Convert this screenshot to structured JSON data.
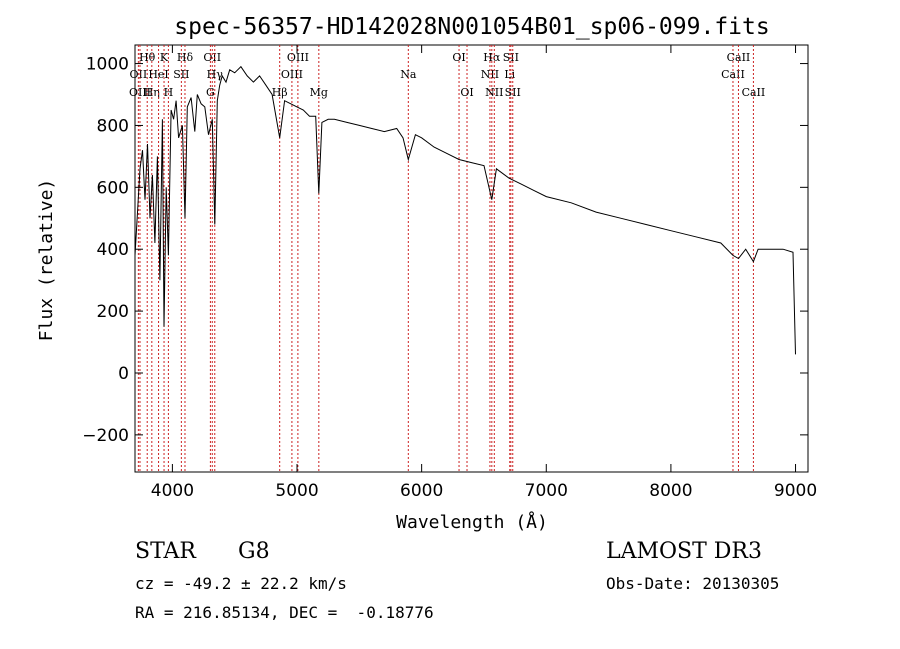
{
  "chart_data": {
    "type": "line",
    "title": "spec-56357-HD142028N001054B01_sp06-099.fits",
    "xlabel": "Wavelength (Å)",
    "ylabel": "Flux (relative)",
    "xlim": [
      3700,
      9100
    ],
    "ylim": [
      -320,
      1060
    ],
    "x_ticks": [
      4000,
      5000,
      6000,
      7000,
      8000,
      9000
    ],
    "y_ticks": [
      -200,
      0,
      200,
      400,
      600,
      800,
      1000
    ],
    "grid": false,
    "series": [
      {
        "name": "flux",
        "x": [
          3700,
          3720,
          3740,
          3760,
          3780,
          3800,
          3820,
          3840,
          3860,
          3880,
          3900,
          3920,
          3933,
          3950,
          3968,
          3990,
          4010,
          4030,
          4050,
          4080,
          4101,
          4120,
          4150,
          4180,
          4200,
          4230,
          4260,
          4290,
          4320,
          4340,
          4360,
          4380,
          4400,
          4430,
          4460,
          4500,
          4550,
          4600,
          4650,
          4700,
          4750,
          4800,
          4861,
          4900,
          4950,
          5000,
          5050,
          5100,
          5150,
          5175,
          5200,
          5250,
          5300,
          5400,
          5500,
          5600,
          5700,
          5800,
          5850,
          5893,
          5950,
          6000,
          6100,
          6200,
          6300,
          6400,
          6500,
          6563,
          6600,
          6700,
          6800,
          6900,
          7000,
          7200,
          7400,
          7600,
          7800,
          8000,
          8200,
          8400,
          8498,
          8542,
          8600,
          8662,
          8700,
          8800,
          8900,
          8980,
          9000
        ],
        "y": [
          380,
          520,
          660,
          720,
          560,
          740,
          500,
          640,
          420,
          700,
          300,
          820,
          150,
          600,
          380,
          850,
          820,
          880,
          760,
          800,
          500,
          860,
          890,
          780,
          900,
          870,
          860,
          770,
          820,
          480,
          880,
          930,
          960,
          940,
          980,
          970,
          990,
          960,
          940,
          960,
          930,
          900,
          760,
          880,
          870,
          860,
          850,
          830,
          830,
          580,
          810,
          820,
          820,
          810,
          800,
          790,
          780,
          790,
          760,
          690,
          770,
          760,
          730,
          710,
          690,
          680,
          670,
          560,
          660,
          630,
          610,
          590,
          570,
          550,
          520,
          500,
          480,
          460,
          440,
          420,
          380,
          370,
          400,
          360,
          400,
          400,
          400,
          390,
          60
        ]
      }
    ],
    "line_markers": [
      {
        "label": "Hθ",
        "x": 3798,
        "row": 1
      },
      {
        "label": "Hη",
        "x": 3835,
        "row": 3
      },
      {
        "label": "OII",
        "x": 3727,
        "row": 2
      },
      {
        "label": "OIII",
        "x": 3740,
        "row": 3
      },
      {
        "label": "K",
        "x": 3933,
        "row": 1
      },
      {
        "label": "HeI",
        "x": 3889,
        "row": 2
      },
      {
        "label": "H",
        "x": 3968,
        "row": 3
      },
      {
        "label": "SII",
        "x": 4072,
        "row": 2
      },
      {
        "label": "Hδ",
        "x": 4101,
        "row": 1
      },
      {
        "label": "OII",
        "x": 4320,
        "row": 1
      },
      {
        "label": "Hγ",
        "x": 4340,
        "row": 2
      },
      {
        "label": "G",
        "x": 4305,
        "row": 3
      },
      {
        "label": "Hβ",
        "x": 4861,
        "row": 3
      },
      {
        "label": "OIII",
        "x": 4959,
        "row": 2
      },
      {
        "label": "OIII",
        "x": 5007,
        "row": 1
      },
      {
        "label": "Mg",
        "x": 5175,
        "row": 3
      },
      {
        "label": "Na",
        "x": 5893,
        "row": 2
      },
      {
        "label": "OI",
        "x": 6300,
        "row": 1
      },
      {
        "label": "OI",
        "x": 6364,
        "row": 3
      },
      {
        "label": "NII",
        "x": 6548,
        "row": 2
      },
      {
        "label": "Hα",
        "x": 6563,
        "row": 1
      },
      {
        "label": "NII",
        "x": 6583,
        "row": 3
      },
      {
        "label": "SII",
        "x": 6716,
        "row": 1
      },
      {
        "label": "Li",
        "x": 6707,
        "row": 2
      },
      {
        "label": "SII",
        "x": 6731,
        "row": 3
      },
      {
        "label": "CaII",
        "x": 8498,
        "row": 2
      },
      {
        "label": "CaII",
        "x": 8542,
        "row": 1
      },
      {
        "label": "CaII",
        "x": 8662,
        "row": 3
      }
    ],
    "line_color": "#000000",
    "marker_color": "#cc2222"
  },
  "info": {
    "class_label": "STAR",
    "subclass": "G8",
    "survey": "LAMOST DR3",
    "cz_text": "cz = -49.2 ± 22.2 km/s",
    "obs_date": "Obs-Date: 20130305",
    "coords": "RA = 216.85134, DEC =  -0.18776"
  }
}
